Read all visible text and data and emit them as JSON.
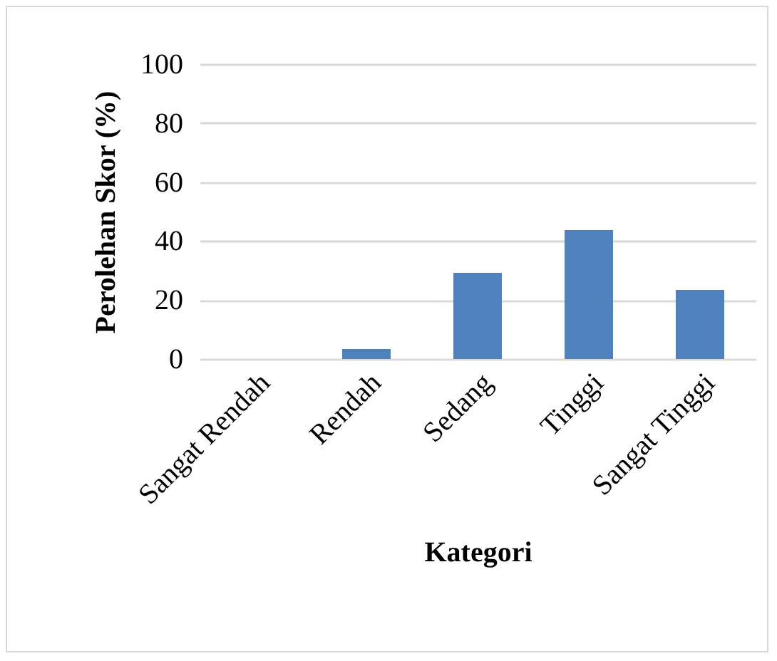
{
  "chart_data": {
    "type": "bar",
    "xlabel": "Kategori",
    "ylabel": "Perolehan Skor (%)",
    "categories": [
      "Sangat Rendah",
      "Rendah",
      "Sedang",
      "Tinggi",
      "Sangat Tinggi"
    ],
    "values": [
      0,
      3.4,
      29.2,
      43.7,
      23.4
    ],
    "color": "#4f81bd",
    "ylim": [
      0,
      100
    ],
    "yticks": [
      0,
      20,
      40,
      60,
      80,
      100
    ],
    "grid": "y"
  }
}
